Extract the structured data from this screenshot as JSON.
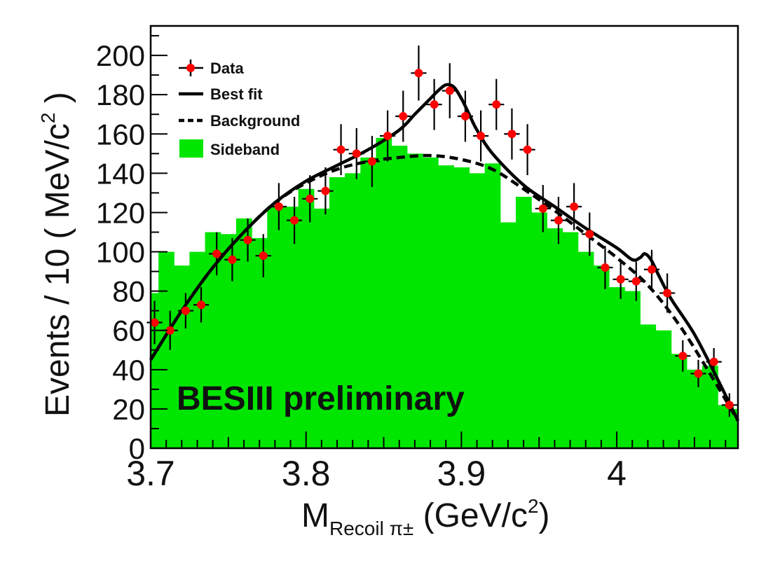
{
  "chart_data": {
    "type": "histogram-fit",
    "title": "",
    "xlabel_main": "M",
    "xlabel_sub": "Recoil π±",
    "xlabel_unit_open": " (GeV/c",
    "xlabel_unit_sup": "2",
    "xlabel_unit_close": ")",
    "ylabel_main": "Events / 10 ( MeV/c",
    "ylabel_sup": "2",
    "ylabel_close": " )",
    "xlim": [
      3.7,
      4.078
    ],
    "ylim": [
      0,
      215
    ],
    "x_ticks": [
      {
        "value": 3.7,
        "label": "3.7"
      },
      {
        "value": 3.8,
        "label": "3.8"
      },
      {
        "value": 3.9,
        "label": "3.9"
      },
      {
        "value": 4.0,
        "label": "4"
      }
    ],
    "y_ticks": [
      {
        "value": 0,
        "label": "0"
      },
      {
        "value": 20,
        "label": "20"
      },
      {
        "value": 40,
        "label": "40"
      },
      {
        "value": 60,
        "label": "60"
      },
      {
        "value": 80,
        "label": "80"
      },
      {
        "value": 100,
        "label": "100"
      },
      {
        "value": 120,
        "label": "120"
      },
      {
        "value": 140,
        "label": "140"
      },
      {
        "value": 160,
        "label": "160"
      },
      {
        "value": 180,
        "label": "180"
      },
      {
        "value": 200,
        "label": "200"
      }
    ],
    "bin_width": 0.01,
    "sideband": {
      "name": "Sideband",
      "color": "#00e600",
      "bin_start": 3.695,
      "values": [
        79,
        100,
        93,
        100,
        110,
        109,
        117,
        107,
        123,
        123,
        132,
        122,
        138,
        140,
        148,
        158,
        154,
        150,
        148,
        144,
        143,
        140,
        145,
        115,
        128,
        120,
        112,
        110,
        100,
        93,
        82,
        80,
        63,
        60,
        48,
        40,
        42,
        22,
        20
      ]
    },
    "data": {
      "name": "Data",
      "color": "#ff0000",
      "x": [
        3.7025,
        3.7125,
        3.7225,
        3.7325,
        3.7425,
        3.7525,
        3.7625,
        3.7725,
        3.7825,
        3.7925,
        3.8025,
        3.8125,
        3.8225,
        3.8325,
        3.8425,
        3.8525,
        3.8625,
        3.8725,
        3.8825,
        3.8925,
        3.9025,
        3.9125,
        3.9225,
        3.9325,
        3.9425,
        3.9525,
        3.9625,
        3.9725,
        3.9825,
        3.9925,
        4.0025,
        4.0125,
        4.0225,
        4.0325,
        4.0425,
        4.0525,
        4.0625,
        4.0725
      ],
      "y": [
        64,
        60,
        70,
        73,
        99,
        96,
        106,
        98,
        123,
        116,
        127,
        131,
        152,
        150,
        146,
        159,
        169,
        191,
        175,
        182,
        169,
        159,
        175,
        160,
        152,
        122,
        116,
        123,
        109,
        92,
        86,
        85,
        91,
        79,
        47,
        38,
        44,
        22
      ],
      "err": [
        11,
        10,
        9,
        9,
        11,
        11,
        11,
        11,
        12,
        12,
        12,
        12,
        13,
        13,
        13,
        13,
        13,
        14,
        13,
        14,
        13,
        13,
        13,
        13,
        13,
        12,
        12,
        12,
        11,
        11,
        10,
        10,
        10,
        10,
        8,
        7,
        7,
        6
      ]
    },
    "best_fit": {
      "name": "Best fit",
      "x": [
        3.7,
        3.72,
        3.74,
        3.76,
        3.78,
        3.8,
        3.82,
        3.84,
        3.86,
        3.87,
        3.88,
        3.885,
        3.89,
        3.895,
        3.9,
        3.905,
        3.91,
        3.92,
        3.94,
        3.96,
        3.98,
        4.0,
        4.01,
        4.015,
        4.018,
        4.022,
        4.027,
        4.035,
        4.05,
        4.065,
        4.078
      ],
      "y": [
        45,
        70,
        92,
        110,
        125,
        136,
        144,
        152,
        162,
        170,
        178,
        182,
        185,
        184,
        178,
        170,
        162,
        150,
        134,
        123,
        112,
        102,
        96,
        97,
        99,
        96,
        88,
        76,
        58,
        35,
        14
      ]
    },
    "background": {
      "name": "Background",
      "x": [
        3.7,
        3.72,
        3.74,
        3.76,
        3.78,
        3.8,
        3.82,
        3.84,
        3.86,
        3.88,
        3.9,
        3.92,
        3.94,
        3.96,
        3.98,
        4.0,
        4.02,
        4.04,
        4.06,
        4.078
      ],
      "y": [
        45,
        70,
        92,
        110,
        125,
        135,
        142,
        146,
        148,
        149,
        147,
        142,
        132,
        121,
        109,
        97,
        83,
        63,
        38,
        14
      ]
    },
    "legend": {
      "data": "Data",
      "best_fit": "Best fit",
      "background": "Background",
      "sideband": "Sideband"
    },
    "annotation": "BESIII preliminary"
  }
}
